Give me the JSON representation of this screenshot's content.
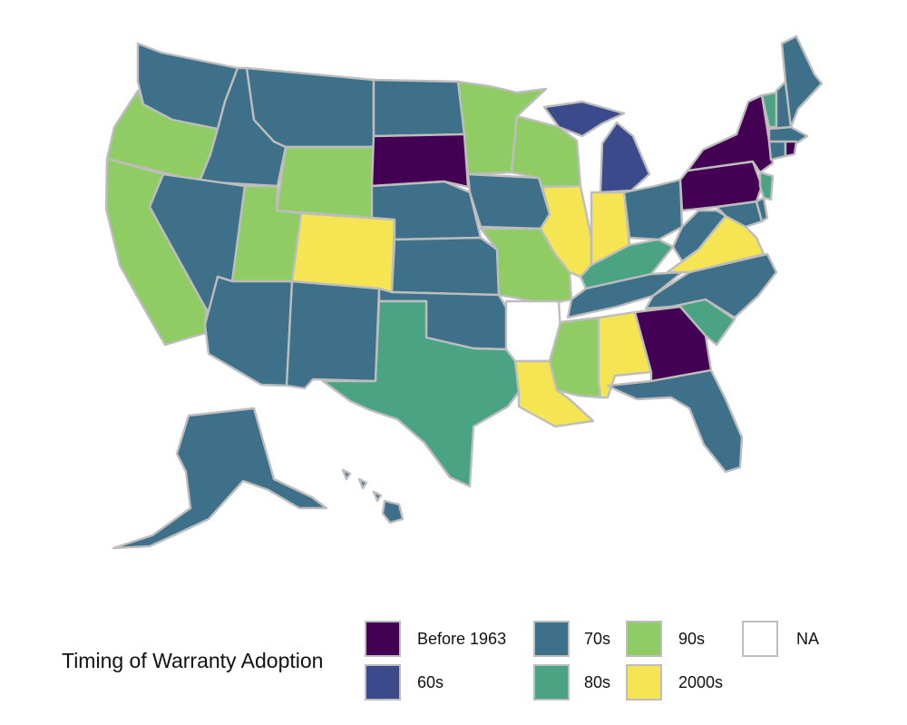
{
  "legend": {
    "title": "Timing of Warranty Adoption",
    "items": [
      {
        "label": "Before 1963",
        "color": "#440154"
      },
      {
        "label": "60s",
        "color": "#3b4a8a"
      },
      {
        "label": "70s",
        "color": "#3e7089"
      },
      {
        "label": "80s",
        "color": "#4aa383"
      },
      {
        "label": "90s",
        "color": "#8fcd64"
      },
      {
        "label": "2000s",
        "color": "#f5e552"
      },
      {
        "label": "NA",
        "color": "#ffffff"
      }
    ]
  },
  "states": {
    "WA": "70s",
    "OR": "90s",
    "CA": "90s",
    "ID": "70s",
    "NV": "70s",
    "MT": "70s",
    "WY": "90s",
    "UT": "90s",
    "CO": "2000s",
    "AZ": "70s",
    "NM": "70s",
    "ND": "70s",
    "SD": "Before 1963",
    "NE": "70s",
    "KS": "70s",
    "OK": "70s",
    "TX": "80s",
    "MN": "90s",
    "IA": "70s",
    "MO": "90s",
    "AR": "NA",
    "LA": "2000s",
    "WI": "90s",
    "IL": "2000s",
    "MI": "60s",
    "IN": "2000s",
    "OH": "70s",
    "KY": "80s",
    "TN": "70s",
    "MS": "90s",
    "AL": "2000s",
    "GA": "Before 1963",
    "FL": "70s",
    "SC": "80s",
    "NC": "70s",
    "VA": "2000s",
    "WV": "70s",
    "MD": "70s",
    "DE": "70s",
    "PA": "Before 1963",
    "NJ": "80s",
    "NY": "Before 1963",
    "CT": "70s",
    "RI": "Before 1963",
    "MA": "70s",
    "VT": "80s",
    "NH": "70s",
    "ME": "70s",
    "AK": "70s",
    "HI": "70s"
  }
}
